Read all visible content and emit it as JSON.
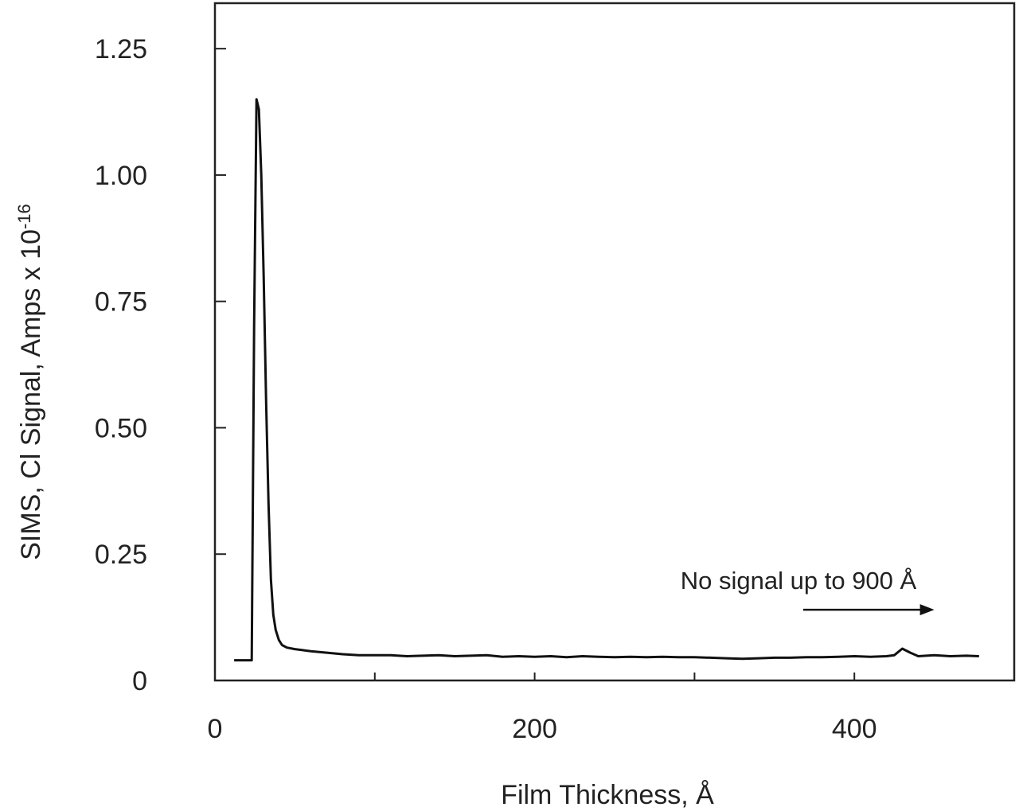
{
  "chart_data": {
    "type": "line",
    "xlabel": "Film Thickness, Å",
    "ylabel": "SIMS, Cl  Signal, Amps x 10",
    "ylabel_exponent": "-16",
    "xlim": [
      0,
      500
    ],
    "ylim": [
      0,
      1.25
    ],
    "xticks": [
      0,
      100,
      200,
      300,
      400
    ],
    "xtick_labels": [
      "0",
      "",
      "200",
      "",
      "400"
    ],
    "yticks": [
      0,
      0.25,
      0.5,
      0.75,
      1.0,
      1.25
    ],
    "ytick_labels": [
      "0",
      "0.25",
      "0.50",
      "0.75",
      "1.00",
      "1.25"
    ],
    "grid": false,
    "annotation": "No signal up to 900 Å",
    "arrow": {
      "x_start": 368,
      "x_end": 450,
      "y": 0.14
    },
    "series": [
      {
        "values_x": [
          12,
          23,
          24.5,
          26,
          27.5,
          29,
          30.5,
          32,
          33.5,
          35,
          36.5,
          38,
          40,
          42,
          45,
          50,
          55,
          60,
          70,
          80,
          90,
          100,
          110,
          120,
          130,
          140,
          150,
          160,
          170,
          180,
          190,
          200,
          210,
          220,
          230,
          240,
          250,
          260,
          270,
          280,
          290,
          300,
          310,
          320,
          330,
          340,
          350,
          360,
          370,
          380,
          390,
          400,
          410,
          420,
          425,
          430,
          435,
          440,
          450,
          460,
          470,
          478
        ],
        "values_y": [
          0.04,
          0.04,
          0.7,
          1.15,
          1.13,
          1.0,
          0.8,
          0.55,
          0.35,
          0.2,
          0.13,
          0.1,
          0.08,
          0.07,
          0.065,
          0.062,
          0.06,
          0.058,
          0.055,
          0.052,
          0.05,
          0.05,
          0.05,
          0.048,
          0.049,
          0.05,
          0.048,
          0.049,
          0.05,
          0.047,
          0.048,
          0.047,
          0.048,
          0.046,
          0.048,
          0.047,
          0.046,
          0.047,
          0.046,
          0.047,
          0.046,
          0.046,
          0.045,
          0.044,
          0.043,
          0.044,
          0.045,
          0.045,
          0.046,
          0.046,
          0.047,
          0.048,
          0.047,
          0.048,
          0.05,
          0.063,
          0.055,
          0.048,
          0.05,
          0.048,
          0.049,
          0.048
        ]
      }
    ]
  }
}
